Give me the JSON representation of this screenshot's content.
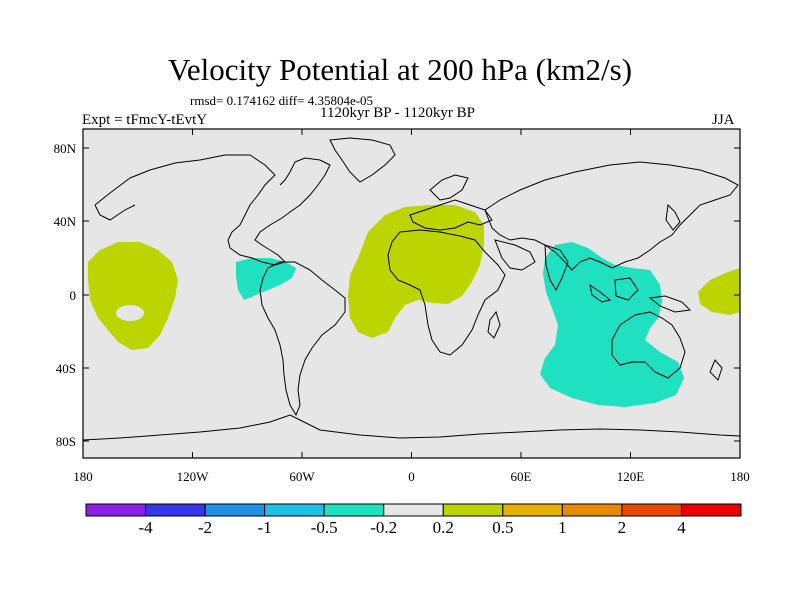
{
  "title": "Velocity Potential at 200 hPa (km2/s)",
  "rmsd_line": "rmsd= 0.174162 diff= 4.35804e-05",
  "experiment": "Expt = tFmcY-tEvtY",
  "period": "1120kyr BP - 1120kyr BP",
  "season": "JJA",
  "map": {
    "lon_ticks": [
      "180",
      "120W",
      "60W",
      "0",
      "60E",
      "120E",
      "180"
    ],
    "lat_ticks": [
      "80N",
      "40N",
      "0",
      "40S",
      "80S"
    ],
    "background_color": "#e6e6e6",
    "anomaly_regions": [
      {
        "name": "central-pacific-positive",
        "level": "0.2 to 0.5",
        "color": "#bcd400"
      },
      {
        "name": "caribbean-negative",
        "level": "-0.5 to -0.2",
        "color": "#1fe0c0"
      },
      {
        "name": "africa-atlantic-positive",
        "level": "0.2 to 0.5",
        "color": "#bcd400"
      },
      {
        "name": "indian-ocean-negative",
        "level": "-0.5 to -0.2",
        "color": "#1fe0c0"
      },
      {
        "name": "east-pacific-positive",
        "level": "0.2 to 0.5",
        "color": "#bcd400"
      }
    ]
  },
  "colorbar": {
    "colors": [
      "#8a1fe6",
      "#3737e6",
      "#1f8fe6",
      "#1fc0e6",
      "#1fe0c0",
      "#e6e6e6",
      "#bcd400",
      "#e6b000",
      "#e68a00",
      "#e64a00",
      "#e60000"
    ],
    "labels": [
      "-4",
      "-2",
      "-1",
      "-0.5",
      "-0.2",
      "0.2",
      "0.5",
      "1",
      "2",
      "4"
    ]
  }
}
